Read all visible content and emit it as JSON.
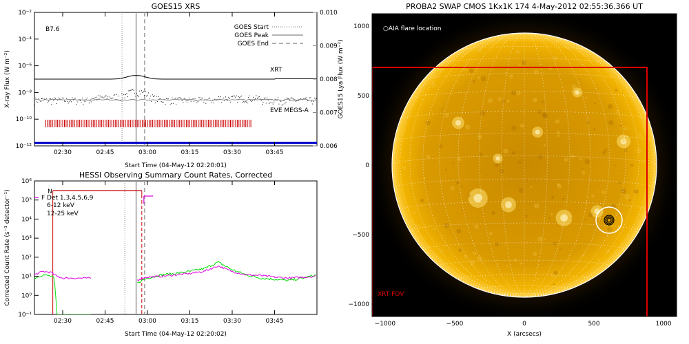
{
  "goes_panel": {
    "title": "GOES15 XRS",
    "class_label": "B7.6",
    "ylabel_left": "X-ray Flux (W m⁻²)",
    "ylabel_right": "GOES15 Lya Flux (W m⁻²)",
    "xlabel": "Start Time (04-May-12 02:20:01)",
    "xticks": [
      "02:30",
      "02:45",
      "03:00",
      "03:15",
      "03:30",
      "03:45"
    ],
    "yticks_left": [
      "10⁻¹²",
      "10⁻¹⁰",
      "10⁻⁸",
      "10⁻⁶",
      "10⁻⁴",
      "10⁻²"
    ],
    "yticks_right": [
      "0.006",
      "0.007",
      "0.008",
      "0.009",
      "0.010"
    ],
    "legend": [
      "GOES Start",
      "GOES Peak",
      "GOES End"
    ],
    "xrt_label": "XRT",
    "eve_label": "EVE MEGS-A",
    "colors": {
      "xrt": "#cc0000",
      "eve": "#0000cc",
      "lya": "#888888"
    }
  },
  "hessi_panel": {
    "title": "HESSI Observing Summary Count Rates, Corrected",
    "ylabel": "Corrected Count Rate (s⁻¹ detector⁻¹)",
    "xlabel": "Start Time (04-May-12 02:20:02)",
    "xticks": [
      "02:30",
      "02:45",
      "03:00",
      "03:15",
      "03:30",
      "03:45"
    ],
    "yticks": [
      "10⁻¹",
      "10⁰",
      "10¹",
      "10²",
      "10³",
      "10⁴",
      "10⁵",
      "10⁶"
    ],
    "flag_n": "N",
    "flag_f": "F",
    "det_label": "Det 1,3,4,5,6,9",
    "series": [
      {
        "name": "6-12 keV",
        "color": "#e000e0"
      },
      {
        "name": "12-25 keV",
        "color": "#00dd00"
      }
    ]
  },
  "swap_panel": {
    "title": "PROBA2 SWAP CMOS 1Kx1K 174   4-May-2012 02:55:36.366 UT",
    "aia_label": "AIA flare location",
    "xrt_fov_label": "XRT FOV",
    "xlabel": "X (arcsecs)",
    "xticks": [
      "−1000",
      "−500",
      "0",
      "500",
      "1000"
    ],
    "yticks": [
      "1000",
      "500",
      "0",
      "−500",
      "−1000"
    ],
    "colors": {
      "fov": "#dd0000",
      "disk": "#e8a800"
    }
  },
  "chart_data": [
    {
      "type": "line",
      "title": "GOES15 XRS",
      "xlabel": "Start Time (04-May-12 02:20:01)",
      "ylabel": "X-ray Flux (W m⁻²)",
      "ylabel_right": "GOES15 Lya Flux (W m⁻²)",
      "ylog": true,
      "ylim": [
        1e-12,
        0.01
      ],
      "ylim_right": [
        0.006,
        0.01
      ],
      "xrange_minutes_after_0220": [
        0,
        100
      ],
      "goes_start": "02:51",
      "goes_peak": "02:56",
      "goes_end": "02:59",
      "series": [
        {
          "name": "XRT"
        },
        {
          "name": "EVE MEGS-A"
        }
      ]
    },
    {
      "type": "line",
      "title": "HESSI Observing Summary Count Rates, Corrected",
      "xlabel": "Start Time (04-May-12 02:20:02)",
      "ylabel": "Corrected Count Rate (s⁻¹ detector⁻¹)",
      "ylog": true,
      "ylim": [
        0.1,
        1000000.0
      ],
      "series": [
        {
          "name": "6-12 keV",
          "x_minutes": [
            0,
            3,
            6,
            7,
            8,
            9,
            10,
            20,
            30,
            36,
            38,
            40,
            45,
            50,
            55,
            60,
            65,
            70,
            75,
            80,
            85,
            90,
            95,
            100
          ],
          "values": [
            12,
            18,
            16,
            12,
            10,
            9,
            8,
            8,
            null,
            6,
            8,
            9,
            10,
            12,
            14,
            18,
            35,
            18,
            12,
            11,
            9,
            8,
            9,
            10
          ]
        },
        {
          "name": "12-25 keV",
          "x_minutes": [
            0,
            3,
            6,
            7,
            8,
            9,
            10,
            20,
            30,
            36,
            38,
            40,
            45,
            50,
            55,
            60,
            65,
            70,
            75,
            80,
            85,
            90,
            95,
            100
          ],
          "values": [
            8,
            12,
            10,
            8,
            0.1,
            0.1,
            0.1,
            0.1,
            null,
            4,
            6,
            8,
            12,
            14,
            18,
            25,
            55,
            22,
            12,
            8,
            7,
            6,
            8,
            12
          ]
        }
      ]
    },
    {
      "type": "heatmap",
      "title": "PROBA2 SWAP CMOS 1Kx1K 174   4-May-2012 02:55:36.366 UT",
      "xlabel": "X (arcsecs)",
      "xlim": [
        -1100,
        1100
      ],
      "ylim": [
        -1100,
        1100
      ],
      "xrt_fov": {
        "x": [
          -1100,
          890
        ],
        "y": [
          -1100,
          710
        ]
      },
      "aia_flare_location": {
        "x": 620,
        "y": -400
      }
    }
  ]
}
